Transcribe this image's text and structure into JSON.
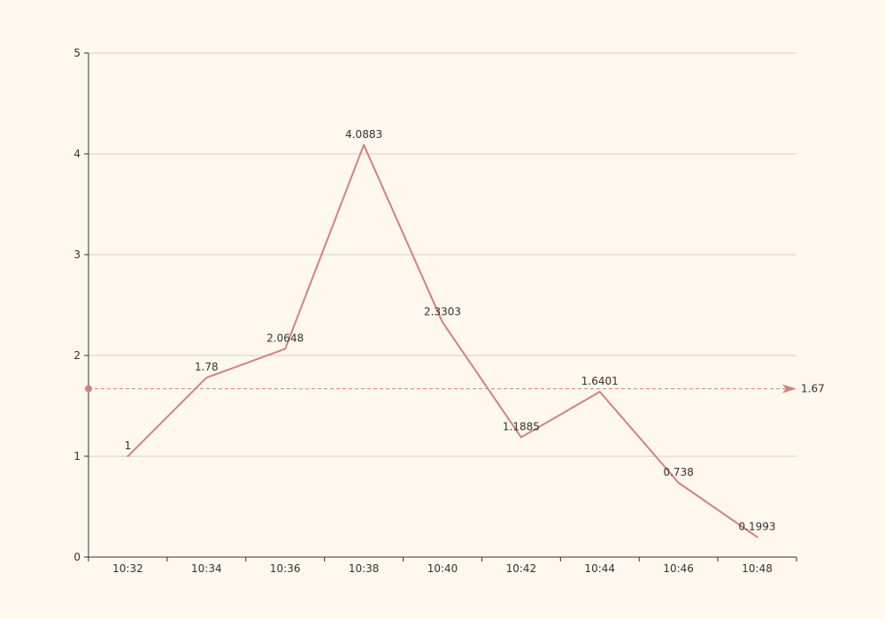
{
  "chart_data": {
    "type": "line",
    "title": "",
    "xlabel": "",
    "ylabel": "",
    "categories": [
      "10:32",
      "10:34",
      "10:36",
      "10:38",
      "10:40",
      "10:42",
      "10:44",
      "10:46",
      "10:48"
    ],
    "y_ticks": [
      "0",
      "1",
      "2",
      "3",
      "4",
      "5"
    ],
    "ylim": [
      0,
      5
    ],
    "grid": true,
    "series": [
      {
        "values": [
          1,
          1.78,
          2.0648,
          4.0883,
          2.3303,
          1.1885,
          1.6401,
          0.738,
          0.1993
        ],
        "labels": [
          "1",
          "1.78",
          "2.0648",
          "4.0883",
          "2.3303",
          "1.1885",
          "1.6401",
          "0.738",
          "0.1993"
        ],
        "color": "#d48080"
      }
    ],
    "mark_line": {
      "type": "average",
      "value": 1.67,
      "label": "1.67",
      "color": "#d48080",
      "style": "dashed"
    }
  },
  "colors": {
    "background": "#fef8ef",
    "series": "#d48080",
    "axis": "#333333",
    "grid": "#d6d2c8"
  }
}
